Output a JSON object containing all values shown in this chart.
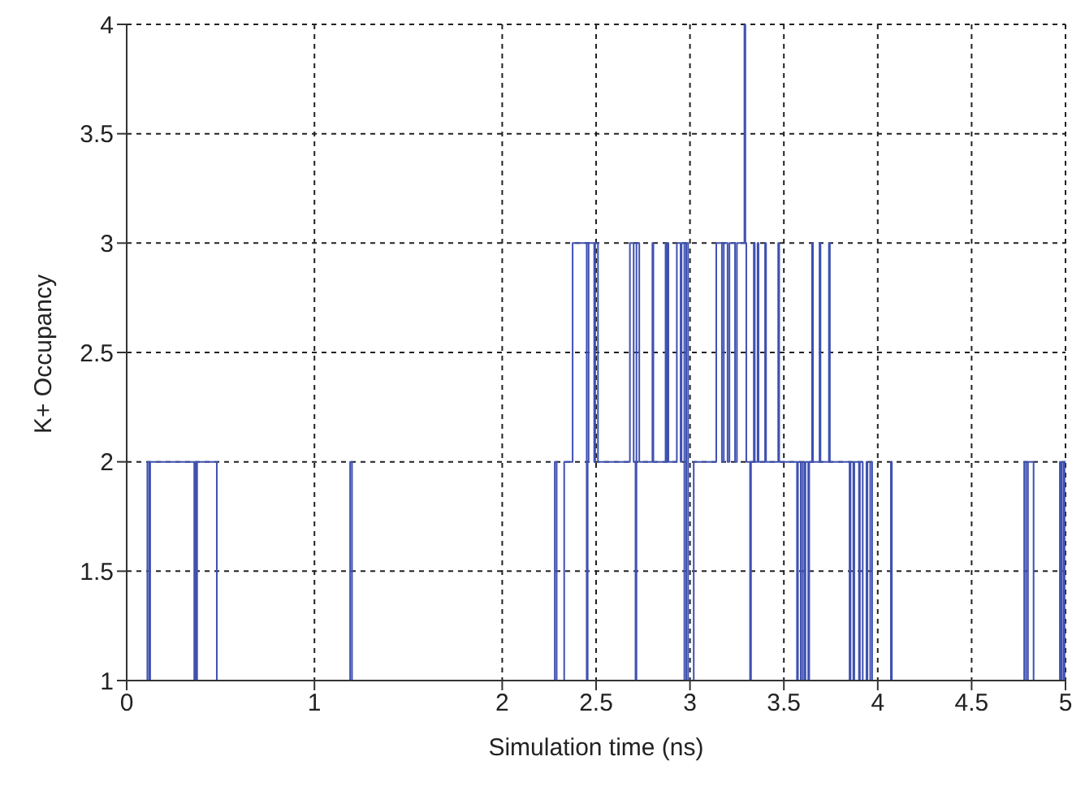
{
  "chart_data": {
    "type": "step",
    "xlabel": "Simulation time (ns)",
    "ylabel": "K+ Occupancy",
    "x": [
      0,
      0.11,
      0.12,
      0.125,
      0.36,
      0.365,
      0.37,
      0.375,
      0.48,
      1.19,
      1.2,
      2.28,
      2.29,
      2.33,
      2.375,
      2.45,
      2.455,
      2.46,
      2.49,
      2.495,
      2.51,
      2.68,
      2.7,
      2.71,
      2.715,
      2.73,
      2.8,
      2.805,
      2.87,
      2.875,
      2.88,
      2.885,
      2.93,
      2.95,
      2.955,
      2.97,
      2.98,
      2.99,
      3.02,
      3.14,
      3.17,
      3.18,
      3.2,
      3.21,
      3.24,
      3.25,
      3.29,
      3.295,
      3.3,
      3.32,
      3.325,
      3.34,
      3.345,
      3.36,
      3.365,
      3.4,
      3.405,
      3.47,
      3.475,
      3.57,
      3.575,
      3.59,
      3.6,
      3.61,
      3.615,
      3.63,
      3.635,
      3.65,
      3.655,
      3.69,
      3.695,
      3.74,
      3.745,
      3.85,
      3.855,
      3.87,
      3.875,
      3.9,
      3.905,
      3.92,
      3.94,
      3.945,
      3.96,
      3.97,
      4.07,
      4.075,
      4.78,
      4.79,
      4.8,
      4.83,
      4.97,
      4.975,
      4.98,
      4.99,
      4.995,
      5
    ],
    "series": [
      {
        "color": "#3f51b0",
        "values": [
          1,
          2,
          1,
          2,
          1,
          2,
          1,
          2,
          1,
          2,
          1,
          2,
          1,
          2,
          3,
          1,
          2,
          3,
          2,
          3,
          2,
          3,
          2,
          1,
          3,
          2,
          3,
          2,
          3,
          2,
          3,
          2,
          3,
          2,
          3,
          1,
          3,
          1,
          2,
          3,
          2,
          3,
          2,
          3,
          2,
          3,
          4,
          3,
          2,
          1,
          2,
          3,
          2,
          3,
          2,
          3,
          2,
          3,
          2,
          1,
          2,
          1,
          2,
          1,
          2,
          1,
          2,
          3,
          2,
          3,
          2,
          3,
          2,
          1,
          2,
          1,
          2,
          1,
          2,
          1,
          2,
          1,
          2,
          1,
          2,
          1,
          2,
          1,
          2,
          1,
          2,
          1,
          2,
          1,
          2,
          2
        ]
      }
    ],
    "xlim": [
      0,
      5
    ],
    "xticks": [
      0,
      1,
      2,
      2.5,
      3,
      3.5,
      4,
      4.5,
      5
    ],
    "ylim": [
      1,
      4
    ],
    "yticks": [
      1,
      1.5,
      2,
      2.5,
      3,
      3.5,
      4
    ],
    "grid": true,
    "line_style": "solid",
    "marker": "none"
  }
}
